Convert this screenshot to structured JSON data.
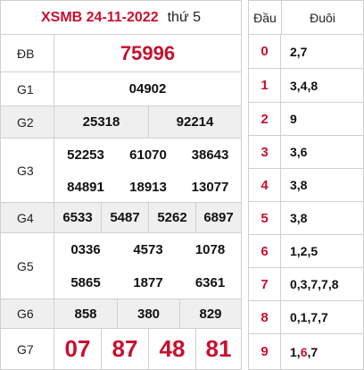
{
  "header": {
    "title": "XSMB 24-11-2022",
    "day": "thứ 5"
  },
  "prizes": {
    "db": {
      "label": "ĐB",
      "numbers": [
        "75996"
      ]
    },
    "g1": {
      "label": "G1",
      "numbers": [
        "04902"
      ]
    },
    "g2": {
      "label": "G2",
      "numbers": [
        "25318",
        "92214"
      ]
    },
    "g3": {
      "label": "G3",
      "numbers": [
        "52253",
        "61070",
        "38643",
        "84891",
        "18913",
        "13077"
      ]
    },
    "g4": {
      "label": "G4",
      "numbers": [
        "6533",
        "5487",
        "5262",
        "6897"
      ]
    },
    "g5": {
      "label": "G5",
      "numbers": [
        "0336",
        "4573",
        "1078",
        "5865",
        "1877",
        "6361"
      ]
    },
    "g6": {
      "label": "G6",
      "numbers": [
        "858",
        "380",
        "829"
      ]
    },
    "g7": {
      "label": "G7",
      "numbers": [
        "07",
        "87",
        "48",
        "81"
      ]
    }
  },
  "loto": {
    "head_label": "Đầu",
    "tail_label": "Đuôi",
    "rows": [
      {
        "head": "0",
        "tails": "2,7"
      },
      {
        "head": "1",
        "tails": "3,4,8"
      },
      {
        "head": "2",
        "tails": "9"
      },
      {
        "head": "3",
        "tails": "3,6"
      },
      {
        "head": "4",
        "tails": "3,8"
      },
      {
        "head": "5",
        "tails": "3,8"
      },
      {
        "head": "6",
        "tails": "1,2,5"
      },
      {
        "head": "7",
        "tails": "0,3,7,7,8"
      },
      {
        "head": "8",
        "tails": "0,1,7,7"
      },
      {
        "head": "9",
        "tails_pre": "1,",
        "tails_hl": "6",
        "tails_post": ",7"
      }
    ]
  },
  "colors": {
    "accent": "#c8102e",
    "border": "#d0d0d0",
    "shade": "#efefef"
  }
}
